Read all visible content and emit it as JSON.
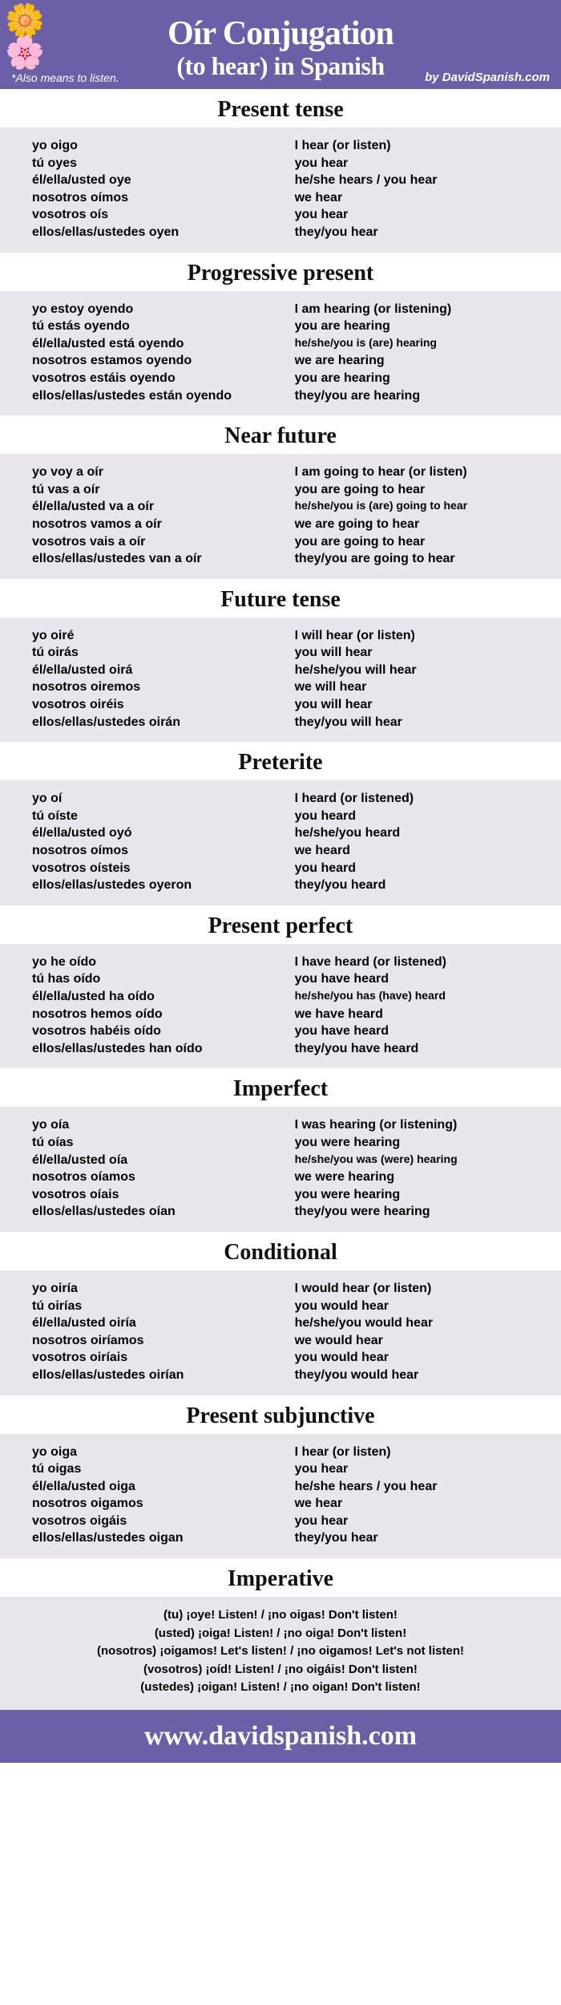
{
  "header": {
    "title": "Oír Conjugation",
    "subtitle": "(to hear) in Spanish",
    "note": "*Also means to listen.",
    "byline": "by DavidSpanish.com"
  },
  "colors": {
    "header_bg": "#6b5fa8",
    "block_bg": "#e8e6ec",
    "text": "#000000",
    "header_text": "#ffffff"
  },
  "tenses": [
    {
      "title": "Present tense",
      "rows": [
        {
          "sp": "yo oigo",
          "en": "I hear (or listen)"
        },
        {
          "sp": "tú oyes",
          "en": "you hear"
        },
        {
          "sp": "él/ella/usted oye",
          "en": "he/she hears / you hear"
        },
        {
          "sp": "nosotros oímos",
          "en": "we hear"
        },
        {
          "sp": "vosotros oís",
          "en": "you hear"
        },
        {
          "sp": "ellos/ellas/ustedes oyen",
          "en": "they/you hear"
        }
      ]
    },
    {
      "title": "Progressive present",
      "rows": [
        {
          "sp": "yo estoy oyendo",
          "en": "I am hearing (or listening)"
        },
        {
          "sp": "tú estás oyendo",
          "en": "you are hearing"
        },
        {
          "sp": "él/ella/usted está oyendo",
          "en": "he/she/you is (are) hearing",
          "small": true
        },
        {
          "sp": "nosotros estamos oyendo",
          "en": "we are hearing"
        },
        {
          "sp": "vosotros estáis oyendo",
          "en": "you are hearing"
        },
        {
          "sp": "ellos/ellas/ustedes están oyendo",
          "en": "they/you are hearing"
        }
      ]
    },
    {
      "title": "Near future",
      "rows": [
        {
          "sp": "yo voy a oír",
          "en": "I am going to hear (or listen)"
        },
        {
          "sp": "tú vas a oír",
          "en": "you are going to hear"
        },
        {
          "sp": "él/ella/usted va a oír",
          "en": "he/she/you is (are) going to hear",
          "small": true
        },
        {
          "sp": "nosotros vamos a oír",
          "en": "we are going to hear"
        },
        {
          "sp": "vosotros vais a oír",
          "en": "you are going to hear"
        },
        {
          "sp": "ellos/ellas/ustedes van a oír",
          "en": "they/you are going to hear"
        }
      ]
    },
    {
      "title": "Future tense",
      "rows": [
        {
          "sp": "yo oiré",
          "en": "I will hear (or listen)"
        },
        {
          "sp": "tú oirás",
          "en": "you will hear"
        },
        {
          "sp": "él/ella/usted oirá",
          "en": "he/she/you will hear"
        },
        {
          "sp": "nosotros oiremos",
          "en": "we will hear"
        },
        {
          "sp": "vosotros oiréis",
          "en": "you will hear"
        },
        {
          "sp": "ellos/ellas/ustedes oirán",
          "en": "they/you will hear"
        }
      ]
    },
    {
      "title": "Preterite",
      "rows": [
        {
          "sp": "yo oí",
          "en": "I heard (or listened)"
        },
        {
          "sp": "tú oíste",
          "en": "you heard"
        },
        {
          "sp": "él/ella/usted oyó",
          "en": "he/she/you heard"
        },
        {
          "sp": "nosotros oímos",
          "en": "we heard"
        },
        {
          "sp": "vosotros oísteis",
          "en": "you heard"
        },
        {
          "sp": "ellos/ellas/ustedes oyeron",
          "en": "they/you heard"
        }
      ]
    },
    {
      "title": "Present perfect",
      "rows": [
        {
          "sp": "yo he oído",
          "en": "I have heard (or listened)"
        },
        {
          "sp": "tú has oído",
          "en": "you have heard"
        },
        {
          "sp": "él/ella/usted ha oído",
          "en": "he/she/you has (have) heard",
          "small": true
        },
        {
          "sp": "nosotros hemos oído",
          "en": "we have heard"
        },
        {
          "sp": "vosotros habéis oído",
          "en": "you have heard"
        },
        {
          "sp": "ellos/ellas/ustedes han oído",
          "en": "they/you have heard"
        }
      ]
    },
    {
      "title": "Imperfect",
      "rows": [
        {
          "sp": "yo oía",
          "en": "I was hearing (or listening)"
        },
        {
          "sp": "tú oías",
          "en": "you were hearing"
        },
        {
          "sp": "él/ella/usted oía",
          "en": "he/she/you was (were) hearing",
          "small": true
        },
        {
          "sp": "nosotros oíamos",
          "en": "we were hearing"
        },
        {
          "sp": "vosotros oíais",
          "en": "you were hearing"
        },
        {
          "sp": "ellos/ellas/ustedes oían",
          "en": "they/you were hearing"
        }
      ]
    },
    {
      "title": "Conditional",
      "rows": [
        {
          "sp": "yo oiría",
          "en": "I would hear (or listen)"
        },
        {
          "sp": "tú oirías",
          "en": "you would hear"
        },
        {
          "sp": "él/ella/usted oiría",
          "en": "he/she/you would hear"
        },
        {
          "sp": "nosotros oiríamos",
          "en": "we would hear"
        },
        {
          "sp": "vosotros oiríais",
          "en": "you would hear"
        },
        {
          "sp": "ellos/ellas/ustedes oirían",
          "en": "they/you would hear"
        }
      ]
    },
    {
      "title": "Present subjunctive",
      "rows": [
        {
          "sp": "yo oiga",
          "en": "I hear (or listen)"
        },
        {
          "sp": "tú oigas",
          "en": "you hear"
        },
        {
          "sp": "él/ella/usted oiga",
          "en": "he/she hears / you hear"
        },
        {
          "sp": "nosotros oigamos",
          "en": "we hear"
        },
        {
          "sp": "vosotros oigáis",
          "en": "you hear"
        },
        {
          "sp": "ellos/ellas/ustedes oigan",
          "en": "they/you hear"
        }
      ]
    }
  ],
  "imperative": {
    "title": "Imperative",
    "lines": [
      "(tu) ¡oye! Listen! / ¡no oigas! Don't listen!",
      "(usted) ¡oiga! Listen! / ¡no oiga! Don't listen!",
      "(nosotros) ¡oigamos! Let's listen! / ¡no oigamos! Let's not listen!",
      "(vosotros) ¡oíd! Listen! / ¡no oigáis! Don't listen!",
      "(ustedes) ¡oigan! Listen! / ¡no oigan! Don't listen!"
    ]
  },
  "footer": {
    "url": "www.davidspanish.com"
  }
}
